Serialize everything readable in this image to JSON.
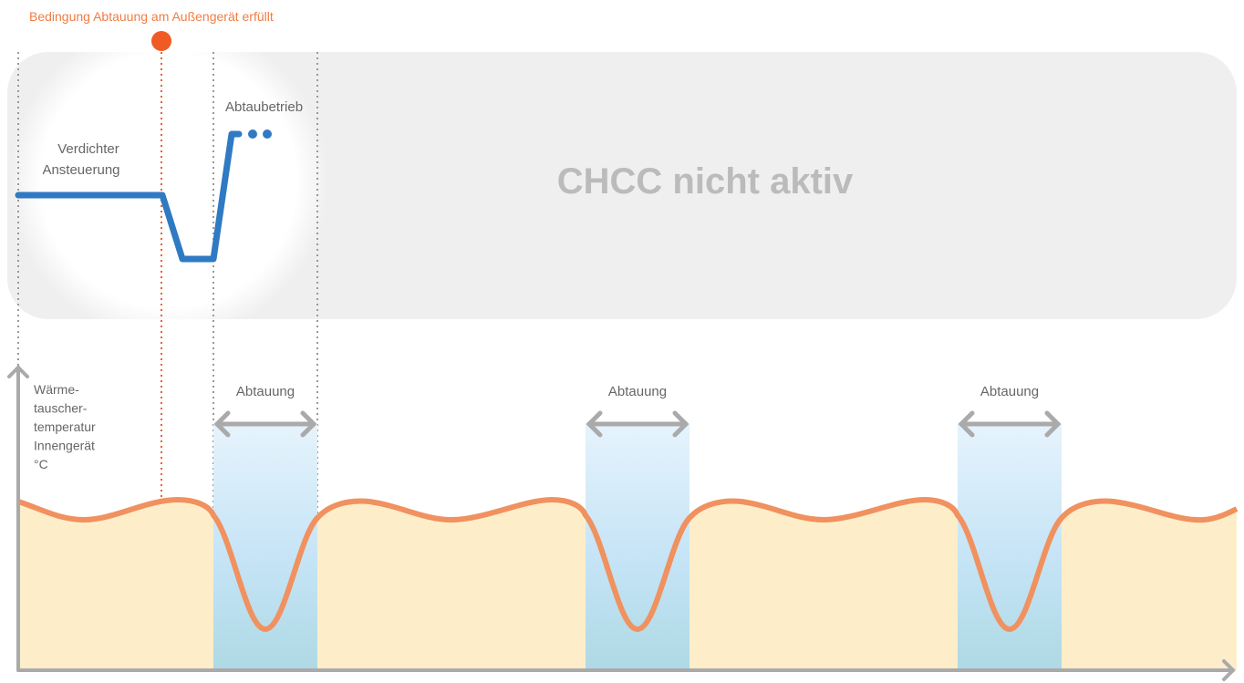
{
  "annotation": "Bedingung Abtauung am Außengerät erfüllt",
  "panel": {
    "title": "CHCC nicht aktiv",
    "compressor_label": [
      "Verdichter",
      "Ansteuerung"
    ],
    "mode_label": "Abtaubetrieb"
  },
  "y_axis_label": [
    "Wärme-",
    "tauscher-",
    "temperatur",
    "Innengerät",
    "°C"
  ],
  "defrost_labels": [
    "Abtauung",
    "Abtauung",
    "Abtauung"
  ]
}
